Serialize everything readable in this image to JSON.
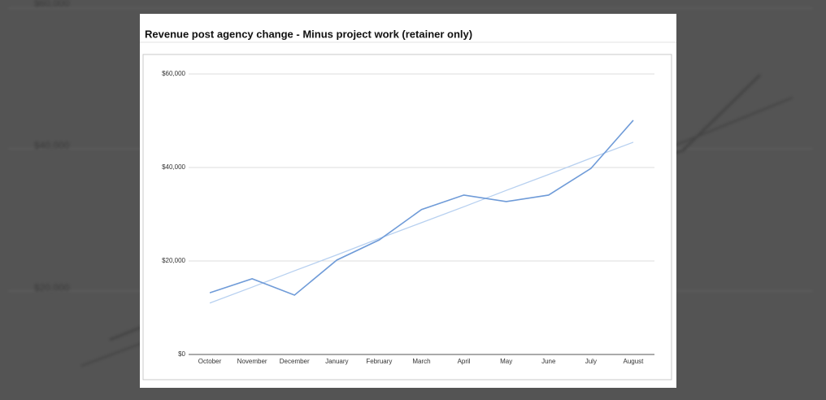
{
  "background_labels": [
    "$60,000",
    "$40,000",
    "$20,000"
  ],
  "chart_data": {
    "type": "line",
    "title": "Revenue post agency change - Minus project work (retainer only)",
    "categories": [
      "October",
      "November",
      "December",
      "January",
      "February",
      "March",
      "April",
      "May",
      "June",
      "July",
      "August"
    ],
    "series": [
      {
        "color": "#6f9bd8",
        "values": [
          13200,
          16200,
          12700,
          20200,
          24500,
          31000,
          34100,
          32700,
          34100,
          39800,
          50100
        ]
      },
      {
        "color": "#b7d0f0",
        "values": [
          11000,
          14400,
          17900,
          21300,
          24800,
          28200,
          31600,
          35100,
          38500,
          42000,
          45400
        ]
      }
    ],
    "ylim": [
      0,
      60000
    ],
    "yticks": [
      {
        "value": 0,
        "label": "$0"
      },
      {
        "value": 20000,
        "label": "$20,000"
      },
      {
        "value": 40000,
        "label": "$40,000"
      },
      {
        "value": 60000,
        "label": "$60,000"
      }
    ],
    "grid": true
  }
}
